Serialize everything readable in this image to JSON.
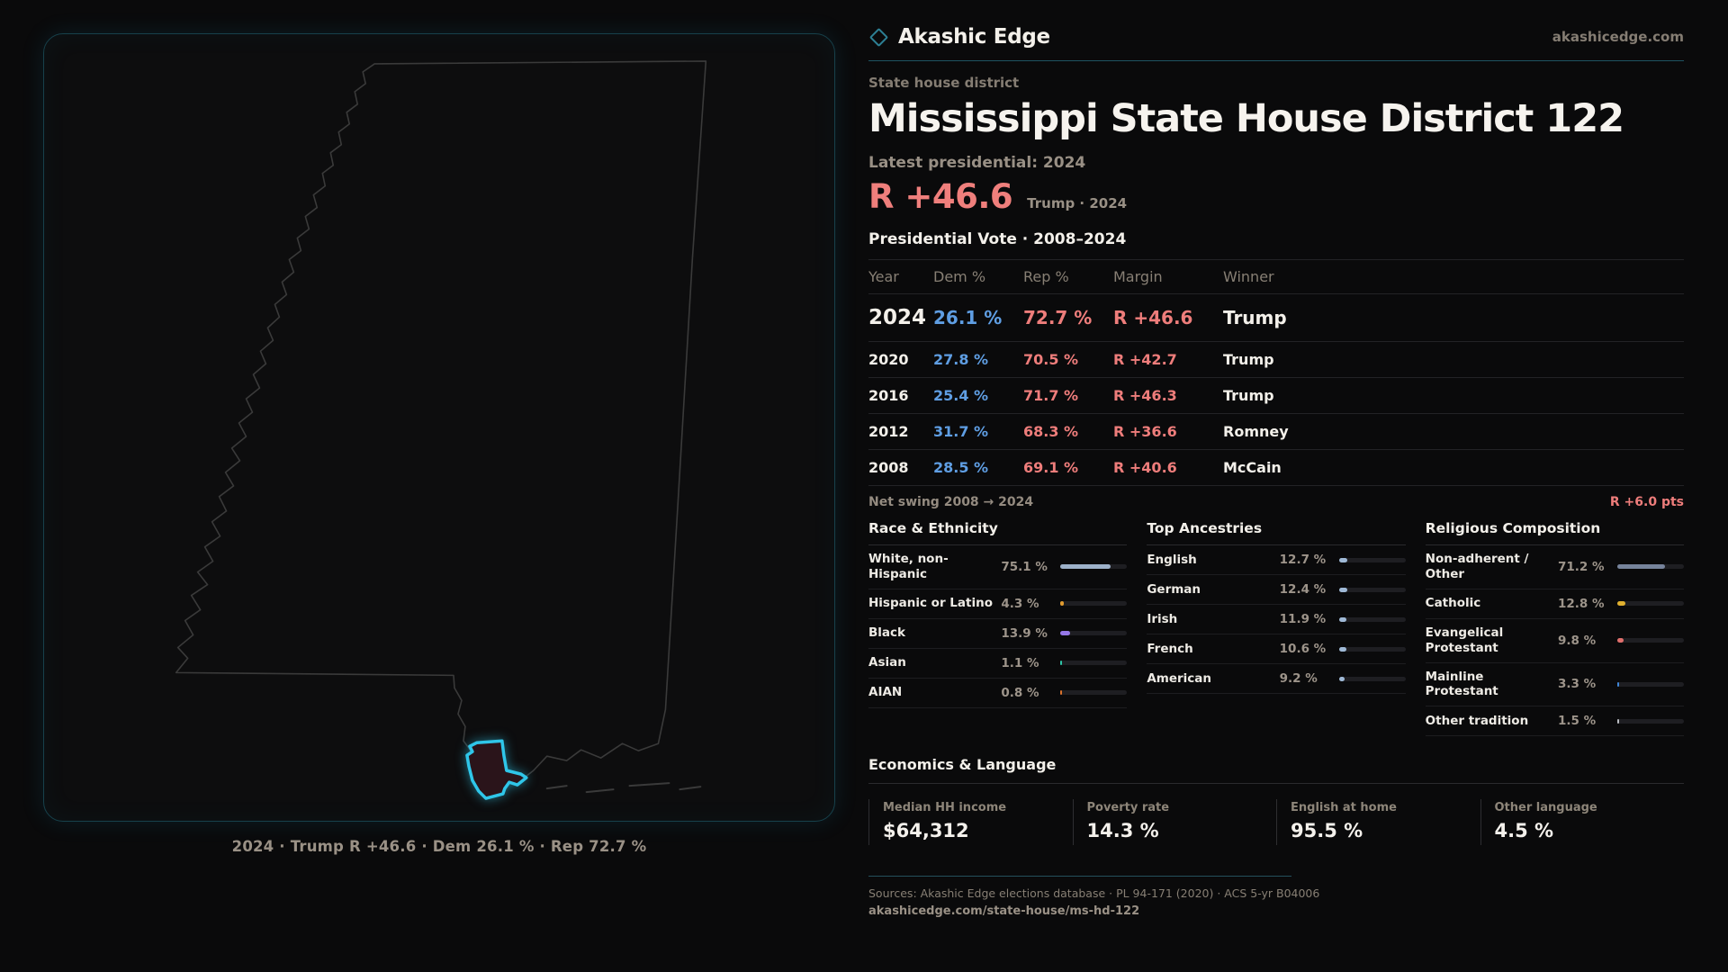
{
  "brand": {
    "name": "Akashic Edge",
    "domain": "akashicedge.com"
  },
  "page": {
    "kicker": "State house district",
    "title": "Mississippi State House District 122",
    "latest_label": "Latest presidential: 2024",
    "headline_margin": "R +46.6",
    "headline_context": "Trump · 2024"
  },
  "vote_table": {
    "title": "Presidential Vote · 2008–2024",
    "columns": [
      "Year",
      "Dem %",
      "Rep %",
      "Margin",
      "Winner"
    ],
    "rows": [
      {
        "year": "2024",
        "dem": "26.1 %",
        "rep": "72.7 %",
        "margin": "R +46.6",
        "winner": "Trump",
        "featured": true
      },
      {
        "year": "2020",
        "dem": "27.8 %",
        "rep": "70.5 %",
        "margin": "R +42.7",
        "winner": "Trump",
        "featured": false
      },
      {
        "year": "2016",
        "dem": "25.4 %",
        "rep": "71.7 %",
        "margin": "R +46.3",
        "winner": "Trump",
        "featured": false
      },
      {
        "year": "2012",
        "dem": "31.7 %",
        "rep": "68.3 %",
        "margin": "R +36.6",
        "winner": "Romney",
        "featured": false
      },
      {
        "year": "2008",
        "dem": "28.5 %",
        "rep": "69.1 %",
        "margin": "R +40.6",
        "winner": "McCain",
        "featured": false
      }
    ]
  },
  "net_swing": {
    "label": "Net swing 2008 → 2024",
    "value": "R +6.0 pts"
  },
  "demographics": [
    {
      "title": "Race & Ethnicity",
      "rows": [
        {
          "label": "White, non-Hispanic",
          "value": "75.1 %",
          "pct": 75.1,
          "color": "#9db1c9"
        },
        {
          "label": "Hispanic or Latino",
          "value": "4.3 %",
          "pct": 4.3,
          "color": "#e09b2f"
        },
        {
          "label": "Black",
          "value": "13.9 %",
          "pct": 13.9,
          "color": "#9678e8"
        },
        {
          "label": "Asian",
          "value": "1.1 %",
          "pct": 1.1,
          "color": "#2ec4a6"
        },
        {
          "label": "AIAN",
          "value": "0.8 %",
          "pct": 0.8,
          "color": "#d9712c"
        }
      ]
    },
    {
      "title": "Top Ancestries",
      "rows": [
        {
          "label": "English",
          "value": "12.7 %",
          "pct": 12.7,
          "color": "#9fb9d6"
        },
        {
          "label": "German",
          "value": "12.4 %",
          "pct": 12.4,
          "color": "#9fb9d6"
        },
        {
          "label": "Irish",
          "value": "11.9 %",
          "pct": 11.9,
          "color": "#9fb9d6"
        },
        {
          "label": "French",
          "value": "10.6 %",
          "pct": 10.6,
          "color": "#9fb9d6"
        },
        {
          "label": "American",
          "value": "9.2 %",
          "pct": 9.2,
          "color": "#9fb9d6"
        }
      ]
    },
    {
      "title": "Religious Composition",
      "rows": [
        {
          "label": "Non-adherent / Other",
          "value": "71.2 %",
          "pct": 71.2,
          "color": "#76839b"
        },
        {
          "label": "Catholic",
          "value": "12.8 %",
          "pct": 12.8,
          "color": "#e0b02f"
        },
        {
          "label": "Evangelical Protestant",
          "value": "9.8 %",
          "pct": 9.8,
          "color": "#e06f6c"
        },
        {
          "label": "Mainline Protestant",
          "value": "3.3 %",
          "pct": 3.3,
          "color": "#3f86d8"
        },
        {
          "label": "Other tradition",
          "value": "1.5 %",
          "pct": 1.5,
          "color": "#b9bcc2"
        }
      ]
    }
  ],
  "economics": {
    "title": "Economics & Language",
    "stats": [
      {
        "label": "Median HH income",
        "value": "$64,312"
      },
      {
        "label": "Poverty rate",
        "value": "14.3 %"
      },
      {
        "label": "English at home",
        "value": "95.5 %"
      },
      {
        "label": "Other language",
        "value": "4.5 %"
      }
    ]
  },
  "map": {
    "caption": "2024 · Trump R +46.6 · Dem 26.1 % · Rep 72.7 %"
  },
  "footer": {
    "sources": "Sources: Akashic Edge elections database · PL 94-171 (2020) · ACS 5-yr B04006",
    "permalink": "akashicedge.com/state-house/ms-hd-122"
  },
  "colors": {
    "dem_blue": "#5f9ee3",
    "rep_red": "#ee7d7b",
    "accent_teal": "#2fc6e9",
    "background": "#0a0a0b"
  },
  "chart_data": [
    {
      "type": "table",
      "title": "Presidential Vote · 2008–2024",
      "categories": [
        2024,
        2020,
        2016,
        2012,
        2008
      ],
      "series": [
        {
          "name": "Dem %",
          "values": [
            26.1,
            27.8,
            25.4,
            31.7,
            28.5
          ]
        },
        {
          "name": "Rep %",
          "values": [
            72.7,
            70.5,
            71.7,
            68.3,
            69.1
          ]
        },
        {
          "name": "R margin",
          "values": [
            46.6,
            42.7,
            46.3,
            36.6,
            40.6
          ]
        }
      ],
      "annotations": [
        "Winners: Trump, Trump, Trump, Romney, McCain",
        "Net swing 2008 → 2024: R +6.0 pts"
      ]
    },
    {
      "type": "bar",
      "title": "Race & Ethnicity",
      "categories": [
        "White, non-Hispanic",
        "Hispanic or Latino",
        "Black",
        "Asian",
        "AIAN"
      ],
      "values": [
        75.1,
        4.3,
        13.9,
        1.1,
        0.8
      ],
      "xlabel": "",
      "ylabel": "%",
      "ylim": [
        0,
        100
      ]
    },
    {
      "type": "bar",
      "title": "Top Ancestries",
      "categories": [
        "English",
        "German",
        "Irish",
        "French",
        "American"
      ],
      "values": [
        12.7,
        12.4,
        11.9,
        10.6,
        9.2
      ],
      "xlabel": "",
      "ylabel": "%",
      "ylim": [
        0,
        100
      ]
    },
    {
      "type": "bar",
      "title": "Religious Composition",
      "categories": [
        "Non-adherent / Other",
        "Catholic",
        "Evangelical Protestant",
        "Mainline Protestant",
        "Other tradition"
      ],
      "values": [
        71.2,
        12.8,
        9.8,
        3.3,
        1.5
      ],
      "xlabel": "",
      "ylabel": "%",
      "ylim": [
        0,
        100
      ]
    }
  ]
}
